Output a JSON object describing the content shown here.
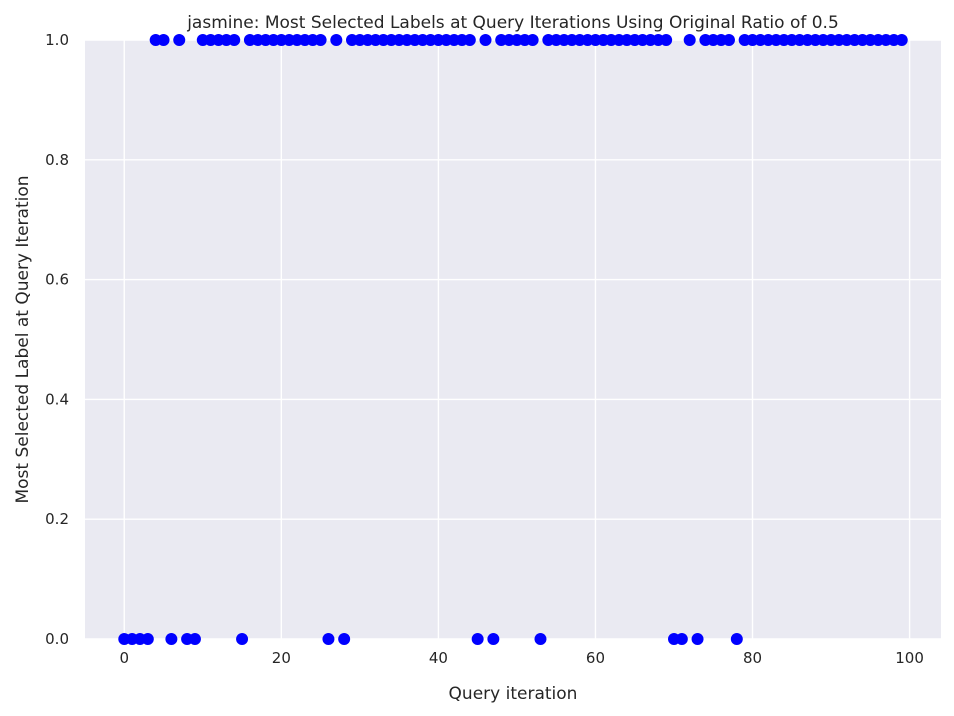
{
  "chart_data": {
    "type": "scatter",
    "title": "jasmine: Most Selected Labels at Query Iterations Using Original Ratio of 0.5",
    "xlabel": "Query iteration",
    "ylabel": "Most Selected Label at Query Iteration",
    "xlim": [
      -5,
      104
    ],
    "ylim": [
      0,
      1
    ],
    "xticks": [
      0,
      20,
      40,
      60,
      80,
      100
    ],
    "yticks": [
      0.0,
      0.2,
      0.4,
      0.6,
      0.8,
      1.0
    ],
    "xtick_labels": [
      "0",
      "20",
      "40",
      "60",
      "80",
      "100"
    ],
    "ytick_labels": [
      "0.0",
      "0.2",
      "0.4",
      "0.6",
      "0.8",
      "1.0"
    ],
    "grid": true,
    "colors": {
      "background": "#eaeaf2",
      "grid": "#ffffff",
      "marker": "#0000ff"
    },
    "x": [
      0,
      1,
      2,
      3,
      4,
      5,
      6,
      7,
      8,
      9,
      10,
      11,
      12,
      13,
      14,
      15,
      16,
      17,
      18,
      19,
      20,
      21,
      22,
      23,
      24,
      25,
      26,
      27,
      28,
      29,
      30,
      31,
      32,
      33,
      34,
      35,
      36,
      37,
      38,
      39,
      40,
      41,
      42,
      43,
      44,
      45,
      46,
      47,
      48,
      49,
      50,
      51,
      52,
      53,
      54,
      55,
      56,
      57,
      58,
      59,
      60,
      61,
      62,
      63,
      64,
      65,
      66,
      67,
      68,
      69,
      70,
      71,
      72,
      73,
      74,
      75,
      76,
      77,
      78,
      79,
      80,
      81,
      82,
      83,
      84,
      85,
      86,
      87,
      88,
      89,
      90,
      91,
      92,
      93,
      94,
      95,
      96,
      97,
      98,
      99
    ],
    "y": [
      0,
      0,
      0,
      0,
      1,
      1,
      0,
      1,
      0,
      0,
      1,
      1,
      1,
      1,
      1,
      0,
      1,
      1,
      1,
      1,
      1,
      1,
      1,
      1,
      1,
      1,
      0,
      1,
      0,
      1,
      1,
      1,
      1,
      1,
      1,
      1,
      1,
      1,
      1,
      1,
      1,
      1,
      1,
      1,
      1,
      0,
      1,
      0,
      1,
      1,
      1,
      1,
      1,
      0,
      1,
      1,
      1,
      1,
      1,
      1,
      1,
      1,
      1,
      1,
      1,
      1,
      1,
      1,
      1,
      1,
      0,
      0,
      1,
      0,
      1,
      1,
      1,
      1,
      0,
      1,
      1,
      1,
      1,
      1,
      1,
      1,
      1,
      1,
      1,
      1,
      1,
      1,
      1,
      1,
      1,
      1,
      1,
      1,
      1,
      1
    ]
  }
}
